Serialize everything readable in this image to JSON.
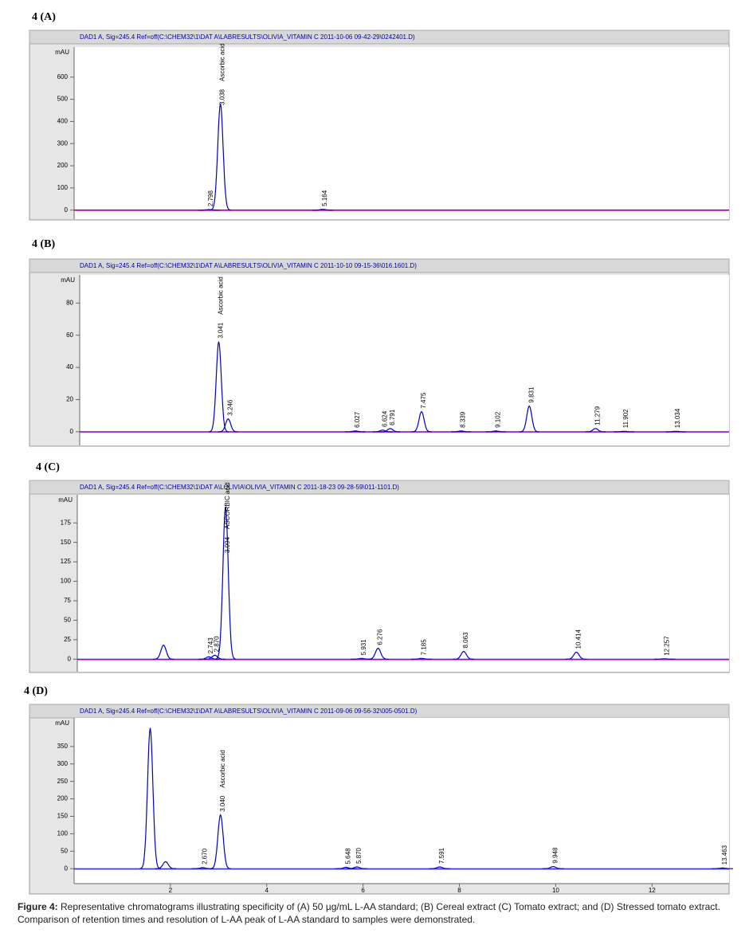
{
  "chart_data": [
    {
      "type": "chromatogram",
      "panel_label": "4 (A)",
      "title": "DAD1 A, Sig=245.4 Ref=off(C:\\CHEM32\\1\\DAT A\\LABRESULTS\\OLIVIA_VITAMIN C 2011-10-06 09-42-29\\0242401.D)",
      "ylabel": "mAU",
      "xlim": [
        0,
        13.6
      ],
      "ylim": [
        -30,
        725
      ],
      "yticks": [
        0,
        100,
        200,
        300,
        400,
        500,
        600
      ],
      "color": "#0000cc",
      "x": [
        2.798,
        3.038,
        5.164
      ],
      "x_labels": [
        "2.798",
        "3.038",
        "5.164"
      ],
      "peak_names": [
        null,
        "Ascorbic acid",
        null
      ],
      "values": [
        2,
        480,
        3
      ]
    },
    {
      "type": "chromatogram",
      "panel_label": "4 (B)",
      "title": "DAD1 A, Sig=245.4 Ref=off(C:\\CHEM32\\1\\DAT A\\LABRESULTS\\OLIVIA_VITAMIN C 2011-10-10 09-15-36\\016.1601.D)",
      "ylabel": "mAU",
      "xlim": [
        0,
        14.2
      ],
      "ylim": [
        -7,
        96
      ],
      "yticks": [
        0,
        20,
        40,
        60,
        80
      ],
      "color": "#0000cc",
      "x": [
        3.041,
        3.246,
        6.027,
        6.624,
        6.791,
        7.475,
        8.339,
        9.102,
        9.831,
        11.279,
        11.902,
        13.034
      ],
      "x_labels": [
        "3.041",
        "3.246",
        "6.027",
        "6.624",
        "6.791",
        "7.475",
        "8.339",
        "9.102",
        "9.831",
        "11.279",
        "11.902",
        "13.034"
      ],
      "peak_names": [
        "Ascorbic acid",
        null,
        null,
        null,
        null,
        null,
        null,
        null,
        null,
        null,
        null,
        null
      ],
      "values": [
        56,
        8,
        0.5,
        1,
        2,
        12.5,
        0.5,
        0.5,
        16,
        2,
        0.3,
        0.3
      ]
    },
    {
      "type": "chromatogram",
      "panel_label": "4 (C)",
      "title": "DAD1 A, Sig=245.4 Ref=off(C:\\CHEM32\\1\\DAT A\\LOLIVIA\\OLIVIA_VITAMIN C 2011-18-23 09-28-59\\011-1101.D)",
      "ylabel": "mAU",
      "xlim": [
        0,
        13.6
      ],
      "ylim": [
        -13,
        208
      ],
      "yticks": [
        0,
        25,
        50,
        75,
        100,
        125,
        150,
        175
      ],
      "color": "#0000cc",
      "x": [
        1.8,
        2.743,
        2.87,
        3.094,
        5.931,
        6.276,
        7.185,
        8.063,
        10.414,
        12.257
      ],
      "x_labels": [
        null,
        "2.743",
        "2.870",
        "3.094",
        "5.931",
        "6.276",
        "7.185",
        "8.063",
        "10.414",
        "12.257"
      ],
      "peak_names": [
        null,
        null,
        null,
        "ASCORBIC acid",
        null,
        null,
        null,
        null,
        null,
        null
      ],
      "values": [
        18,
        3,
        5,
        196,
        1,
        14,
        1,
        10,
        9,
        0.5
      ]
    },
    {
      "type": "chromatogram",
      "panel_label": "4 (D)",
      "title": "DAD1 A, Sig=245.4 Ref=off(C:\\CHEM32\\1\\DAT A\\LABRESULTS\\OLIVIA_VITAMIN C 2011-09-06 09-56-32\\005-0501.D)",
      "ylabel": "mAU",
      "xlim": [
        0,
        13.6
      ],
      "ylim": [
        -36,
        425
      ],
      "yticks": [
        0,
        50,
        100,
        150,
        200,
        250,
        300,
        350
      ],
      "xticks": [
        2,
        4,
        6,
        8,
        10,
        12
      ],
      "color": "#0000cc",
      "x": [
        1.58,
        1.9,
        2.67,
        3.04,
        5.648,
        5.87,
        7.591,
        9.948,
        13.463
      ],
      "x_labels": [
        null,
        null,
        "2.670",
        "3.040",
        "5.648",
        "5.870",
        "7.591",
        "9.948",
        "13.463"
      ],
      "peak_names": [
        null,
        null,
        null,
        "Ascorbic acid",
        null,
        null,
        null,
        null,
        null
      ],
      "values": [
        403,
        20,
        3,
        154,
        4,
        5,
        5,
        6,
        2
      ]
    }
  ],
  "caption": {
    "label": "Figure 4:",
    "text": "Representative chromatograms illustrating specificity of (A) 50 µg/mL L-AA standard; (B) Cereal extract (C) Tomato extract; and (D) Stressed tomato extract. Comparison of retention times and resolution of L-AA peak of L-AA standard to samples were demonstrated."
  }
}
